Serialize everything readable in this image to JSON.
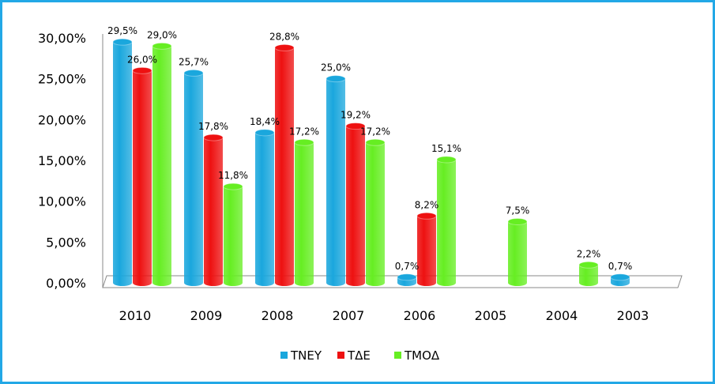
{
  "chart_data": {
    "type": "bar",
    "categories": [
      "2010",
      "2009",
      "2008",
      "2007",
      "2006",
      "2005",
      "2004",
      "2003"
    ],
    "series": [
      {
        "name": "ΤΝΕΥ",
        "color": "#1aa7dd",
        "values": [
          29.5,
          25.7,
          18.4,
          25.0,
          0.7,
          null,
          null,
          0.7
        ],
        "labels": [
          "29,5%",
          "25,7%",
          "18,4%",
          "25,0%",
          "0,7%",
          "",
          "",
          "0,7%"
        ]
      },
      {
        "name": "ΤΔΕ",
        "color": "#ee1111",
        "values": [
          26.0,
          17.8,
          28.8,
          19.2,
          8.2,
          null,
          null,
          null
        ],
        "labels": [
          "26,0%",
          "17,8%",
          "28,8%",
          "19,2%",
          "8,2%",
          "",
          "",
          ""
        ]
      },
      {
        "name": "ΤΜΟΔ",
        "color": "#66ee22",
        "values": [
          29.0,
          11.8,
          17.2,
          17.2,
          15.1,
          7.5,
          2.2,
          null
        ],
        "labels": [
          "29,0%",
          "11,8%",
          "17,2%",
          "17,2%",
          "15,1%",
          "7,5%",
          "2,2%",
          ""
        ]
      }
    ],
    "ylim": [
      0,
      30
    ],
    "yticks": [
      "0,00%",
      "5,00%",
      "10,00%",
      "15,00%",
      "20,00%",
      "25,00%",
      "30,00%"
    ],
    "grid": false,
    "legend_position": "bottom",
    "style": "3d-cylinder",
    "border_color": "#22a8e6"
  }
}
